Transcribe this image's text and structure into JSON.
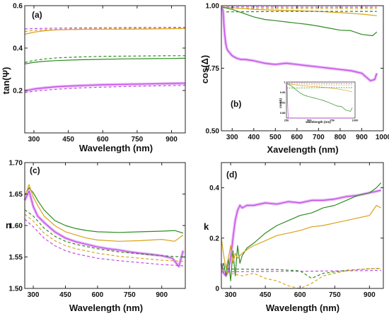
{
  "colors": {
    "magenta": "#c24be8",
    "magenta_shadow": "#e7b6f5",
    "orange": "#d9a21a",
    "green": "#2e8b22"
  },
  "chart_data": [
    {
      "type": "line",
      "panel_label": "(a)",
      "xlabel": "Wavelength (nm)",
      "ylabel": "tan(Ψ)",
      "xlim": [
        260,
        960
      ],
      "ylim": [
        0.0,
        0.6
      ],
      "xticks": [
        300,
        450,
        600,
        750,
        900
      ],
      "yticks": [
        0.2,
        0.4,
        0.6
      ],
      "series": [
        {
          "color": "orange",
          "style": "solid",
          "x": [
            260,
            300,
            350,
            400,
            500,
            600,
            700,
            800,
            900,
            960
          ],
          "y": [
            0.465,
            0.475,
            0.482,
            0.486,
            0.488,
            0.489,
            0.489,
            0.49,
            0.491,
            0.492
          ]
        },
        {
          "color": "magenta",
          "style": "dashed",
          "x": [
            260,
            300,
            400,
            500,
            600,
            700,
            800,
            900,
            960
          ],
          "y": [
            0.49,
            0.492,
            0.494,
            0.495,
            0.496,
            0.497,
            0.497,
            0.498,
            0.498
          ]
        },
        {
          "color": "orange",
          "style": "dashed",
          "x": [
            260,
            300,
            400,
            500,
            600,
            700,
            800,
            900,
            960
          ],
          "y": [
            0.478,
            0.484,
            0.488,
            0.49,
            0.491,
            0.492,
            0.492,
            0.493,
            0.493
          ]
        },
        {
          "color": "green",
          "style": "dashed",
          "x": [
            260,
            300,
            350,
            400,
            500,
            600,
            700,
            800,
            900,
            960
          ],
          "y": [
            0.332,
            0.342,
            0.349,
            0.354,
            0.358,
            0.361,
            0.362,
            0.363,
            0.364,
            0.364
          ]
        },
        {
          "color": "green",
          "style": "solid",
          "x": [
            260,
            300,
            350,
            400,
            500,
            600,
            700,
            800,
            900,
            960
          ],
          "y": [
            0.325,
            0.333,
            0.338,
            0.341,
            0.345,
            0.347,
            0.349,
            0.35,
            0.351,
            0.352
          ]
        },
        {
          "color": "magenta",
          "style": "solid",
          "x": [
            260,
            300,
            350,
            400,
            500,
            600,
            700,
            800,
            900,
            960
          ],
          "y": [
            0.198,
            0.207,
            0.213,
            0.218,
            0.223,
            0.227,
            0.229,
            0.231,
            0.233,
            0.234
          ]
        },
        {
          "color": "magenta",
          "style": "dashed",
          "x": [
            260,
            300,
            400,
            500,
            600,
            700,
            800,
            900,
            960
          ],
          "y": [
            0.19,
            0.197,
            0.206,
            0.212,
            0.216,
            0.219,
            0.221,
            0.223,
            0.224
          ]
        }
      ]
    },
    {
      "type": "line",
      "panel_label": "(b)",
      "xlabel": "Xavelength (nm)",
      "ylabel": "cos(Δ)",
      "xlim": [
        250,
        1000
      ],
      "ylim": [
        0.5,
        1.0
      ],
      "xticks": [
        300,
        400,
        500,
        600,
        700,
        800,
        900,
        1000
      ],
      "yticks": [
        0.5,
        0.75,
        1.0
      ],
      "ytick_labels": [
        "0.50",
        "0.75",
        "1.00"
      ],
      "series": [
        {
          "color": "magenta",
          "style": "dashed",
          "x": [
            250,
            400,
            600,
            800,
            970
          ],
          "y": [
            0.995,
            0.995,
            0.994,
            0.994,
            0.994
          ]
        },
        {
          "color": "orange",
          "style": "dashed",
          "x": [
            250,
            400,
            600,
            800,
            970
          ],
          "y": [
            0.99,
            0.989,
            0.988,
            0.988,
            0.988
          ]
        },
        {
          "color": "orange",
          "style": "solid",
          "x": [
            250,
            300,
            400,
            500,
            600,
            700,
            800,
            900,
            970
          ],
          "y": [
            0.995,
            0.992,
            0.985,
            0.982,
            0.98,
            0.977,
            0.972,
            0.966,
            0.96
          ]
        },
        {
          "color": "green",
          "style": "dashed",
          "x": [
            250,
            400,
            600,
            800,
            970
          ],
          "y": [
            0.975,
            0.976,
            0.977,
            0.977,
            0.977
          ]
        },
        {
          "color": "green",
          "style": "solid",
          "x": [
            250,
            300,
            350,
            400,
            450,
            500,
            550,
            600,
            650,
            700,
            750,
            800,
            850,
            900,
            950,
            970
          ],
          "y": [
            0.995,
            0.985,
            0.97,
            0.955,
            0.945,
            0.94,
            0.935,
            0.93,
            0.925,
            0.918,
            0.91,
            0.902,
            0.9,
            0.885,
            0.88,
            0.895
          ]
        },
        {
          "color": "magenta",
          "style": "solid",
          "x": [
            252,
            258,
            262,
            266,
            270,
            275,
            280,
            290,
            300,
            320,
            340,
            360,
            400,
            450,
            500,
            550,
            600,
            650,
            700,
            750,
            800,
            850,
            900,
            940,
            960,
            970
          ],
          "y": [
            0.99,
            0.98,
            0.92,
            0.88,
            0.85,
            0.83,
            0.82,
            0.81,
            0.8,
            0.79,
            0.785,
            0.785,
            0.78,
            0.77,
            0.765,
            0.77,
            0.765,
            0.76,
            0.755,
            0.75,
            0.745,
            0.74,
            0.73,
            0.7,
            0.705,
            0.73
          ]
        }
      ],
      "inset": {
        "xlabel": "wavelength (nm)",
        "ylabel": "cos(Δ)",
        "xticks": [
          250,
          500,
          750,
          1000
        ],
        "yticks": [
          0.88,
          0.92,
          0.96,
          1.0
        ],
        "xlim": [
          250,
          1000
        ],
        "ylim": [
          0.86,
          1.0
        ]
      }
    },
    {
      "type": "line",
      "panel_label": "(c)",
      "xlabel": "Wavelength (nm)",
      "ylabel": "n",
      "xlim": [
        260,
        1010
      ],
      "ylim": [
        1.5,
        1.7
      ],
      "xticks": [
        300,
        450,
        600,
        750,
        900
      ],
      "yticks": [
        1.5,
        1.55,
        1.6,
        1.65,
        1.7
      ],
      "ytick_labels": [
        "1.50",
        "1.55",
        "1.60",
        "1.65",
        "1.70"
      ],
      "series": [
        {
          "color": "green",
          "style": "solid",
          "x": [
            260,
            280,
            300,
            320,
            350,
            400,
            450,
            500,
            550,
            600,
            700,
            800,
            900,
            960,
            1000
          ],
          "y": [
            1.648,
            1.66,
            1.652,
            1.64,
            1.625,
            1.608,
            1.6,
            1.595,
            1.592,
            1.59,
            1.589,
            1.59,
            1.591,
            1.592,
            1.588
          ]
        },
        {
          "color": "orange",
          "style": "solid",
          "x": [
            260,
            280,
            300,
            320,
            350,
            400,
            450,
            500,
            550,
            600,
            700,
            800,
            900,
            960,
            1000
          ],
          "y": [
            1.645,
            1.665,
            1.645,
            1.632,
            1.615,
            1.6,
            1.59,
            1.585,
            1.58,
            1.577,
            1.575,
            1.576,
            1.578,
            1.575,
            1.585
          ]
        },
        {
          "color": "magenta",
          "style": "solid",
          "x": [
            260,
            280,
            300,
            320,
            350,
            400,
            450,
            500,
            550,
            600,
            650,
            700,
            750,
            800,
            850,
            900,
            950,
            980,
            1000
          ],
          "y": [
            1.64,
            1.655,
            1.63,
            1.615,
            1.605,
            1.59,
            1.58,
            1.574,
            1.57,
            1.566,
            1.563,
            1.561,
            1.558,
            1.556,
            1.554,
            1.552,
            1.548,
            1.535,
            1.56
          ]
        },
        {
          "color": "green",
          "style": "dashed",
          "x": [
            260,
            300,
            350,
            400,
            450,
            500,
            600,
            700,
            800,
            900,
            1000
          ],
          "y": [
            1.625,
            1.615,
            1.596,
            1.583,
            1.575,
            1.57,
            1.563,
            1.558,
            1.555,
            1.552,
            1.55
          ]
        },
        {
          "color": "orange",
          "style": "dashed",
          "x": [
            260,
            300,
            350,
            400,
            450,
            500,
            600,
            700,
            800,
            900,
            1000
          ],
          "y": [
            1.618,
            1.607,
            1.588,
            1.576,
            1.568,
            1.563,
            1.556,
            1.551,
            1.548,
            1.545,
            1.543
          ]
        },
        {
          "color": "magenta",
          "style": "dashed",
          "x": [
            260,
            300,
            350,
            400,
            450,
            500,
            600,
            700,
            800,
            900,
            1000
          ],
          "y": [
            1.61,
            1.598,
            1.58,
            1.568,
            1.56,
            1.555,
            1.548,
            1.544,
            1.541,
            1.538,
            1.536
          ]
        }
      ]
    },
    {
      "type": "line",
      "panel_label": "(d)",
      "xlabel": "Wavelength (nm)",
      "ylabel": "k",
      "xlim": [
        260,
        960
      ],
      "ylim": [
        0.0,
        0.5
      ],
      "xticks": [
        300,
        450,
        600,
        750,
        900
      ],
      "yticks": [
        0.0,
        0.2,
        0.4
      ],
      "series": [
        {
          "color": "magenta",
          "style": "solid",
          "x": [
            260,
            270,
            280,
            290,
            300,
            310,
            320,
            330,
            340,
            350,
            370,
            400,
            450,
            500,
            550,
            600,
            650,
            700,
            750,
            800,
            850,
            900,
            950
          ],
          "y": [
            0.1,
            0.06,
            0.05,
            0.07,
            0.12,
            0.2,
            0.27,
            0.31,
            0.33,
            0.32,
            0.33,
            0.33,
            0.34,
            0.335,
            0.345,
            0.34,
            0.35,
            0.35,
            0.355,
            0.365,
            0.37,
            0.38,
            0.39
          ]
        },
        {
          "color": "green",
          "style": "solid",
          "x": [
            260,
            270,
            280,
            290,
            300,
            310,
            320,
            330,
            340,
            350,
            370,
            400,
            450,
            500,
            550,
            600,
            650,
            700,
            750,
            800,
            850,
            900,
            930,
            950
          ],
          "y": [
            0.08,
            0.1,
            0.05,
            0.12,
            0.03,
            0.15,
            0.05,
            0.17,
            0.1,
            0.13,
            0.16,
            0.18,
            0.22,
            0.25,
            0.27,
            0.29,
            0.3,
            0.32,
            0.33,
            0.35,
            0.37,
            0.38,
            0.4,
            0.42
          ]
        },
        {
          "color": "orange",
          "style": "solid",
          "x": [
            260,
            270,
            280,
            290,
            300,
            310,
            320,
            330,
            350,
            380,
            400,
            450,
            500,
            550,
            600,
            650,
            700,
            750,
            800,
            850,
            900,
            930,
            950
          ],
          "y": [
            0.2,
            0.13,
            0.08,
            0.12,
            0.17,
            0.1,
            0.14,
            0.12,
            0.14,
            0.16,
            0.17,
            0.19,
            0.21,
            0.22,
            0.23,
            0.245,
            0.25,
            0.26,
            0.27,
            0.28,
            0.29,
            0.33,
            0.32
          ]
        },
        {
          "color": "magenta",
          "style": "dashed",
          "x": [
            260,
            300,
            400,
            500,
            600,
            700,
            800,
            900,
            950
          ],
          "y": [
            0.065,
            0.066,
            0.067,
            0.068,
            0.068,
            0.069,
            0.07,
            0.071,
            0.072
          ]
        },
        {
          "color": "green",
          "style": "dashed",
          "x": [
            260,
            300,
            400,
            500,
            600,
            650,
            700,
            800,
            900,
            950
          ],
          "y": [
            0.078,
            0.077,
            0.076,
            0.075,
            0.07,
            0.04,
            0.06,
            0.072,
            0.078,
            0.08
          ]
        },
        {
          "color": "orange",
          "style": "dashed",
          "x": [
            260,
            300,
            350,
            400,
            450,
            500,
            550,
            600,
            650,
            700,
            750,
            800,
            850,
            900,
            950
          ],
          "y": [
            0.07,
            0.06,
            0.05,
            0.06,
            0.04,
            0.03,
            0.01,
            0.0,
            0.02,
            0.05,
            0.06,
            0.07,
            0.075,
            0.078,
            0.08
          ]
        }
      ]
    }
  ]
}
